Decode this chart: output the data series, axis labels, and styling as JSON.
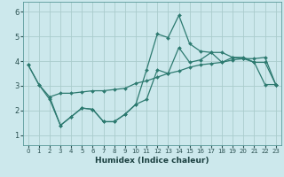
{
  "xlabel": "Humidex (Indice chaleur)",
  "background_color": "#cce8ec",
  "grid_color": "#aacccc",
  "line_color": "#2d7a70",
  "xlim": [
    -0.5,
    23.5
  ],
  "ylim": [
    0.6,
    6.4
  ],
  "xticks": [
    0,
    1,
    2,
    3,
    4,
    5,
    6,
    7,
    8,
    9,
    10,
    11,
    12,
    13,
    14,
    15,
    16,
    17,
    18,
    19,
    20,
    21,
    22,
    23
  ],
  "yticks": [
    1,
    2,
    3,
    4,
    5,
    6
  ],
  "line1_x": [
    0,
    1,
    2,
    3,
    4,
    5,
    6,
    7,
    8,
    9,
    10,
    11,
    12,
    13,
    14,
    15,
    16,
    17,
    18,
    19,
    20,
    21,
    22,
    23
  ],
  "line1_y": [
    3.85,
    3.05,
    2.45,
    1.4,
    1.75,
    2.1,
    2.05,
    1.55,
    1.55,
    1.85,
    2.25,
    3.65,
    5.1,
    4.95,
    5.85,
    4.7,
    4.4,
    4.35,
    4.35,
    4.15,
    4.15,
    3.95,
    3.95,
    3.05
  ],
  "line2_x": [
    0,
    1,
    2,
    3,
    4,
    5,
    6,
    7,
    8,
    9,
    10,
    11,
    12,
    13,
    14,
    15,
    16,
    17,
    18,
    19,
    20,
    21,
    22,
    23
  ],
  "line2_y": [
    3.85,
    3.05,
    2.55,
    2.7,
    2.7,
    2.75,
    2.8,
    2.8,
    2.85,
    2.9,
    3.1,
    3.2,
    3.35,
    3.5,
    3.6,
    3.75,
    3.85,
    3.9,
    3.95,
    4.05,
    4.1,
    4.1,
    4.15,
    3.05
  ],
  "line3_x": [
    2,
    3,
    4,
    5,
    6,
    7,
    8,
    9,
    10,
    11,
    12,
    13,
    14,
    15,
    16,
    17,
    18,
    19,
    20,
    21,
    22,
    23
  ],
  "line3_y": [
    2.55,
    1.4,
    1.75,
    2.1,
    2.05,
    1.55,
    1.55,
    1.85,
    2.25,
    2.45,
    3.65,
    3.5,
    4.55,
    3.95,
    4.05,
    4.35,
    3.95,
    4.15,
    4.1,
    3.95,
    3.05,
    3.05
  ]
}
